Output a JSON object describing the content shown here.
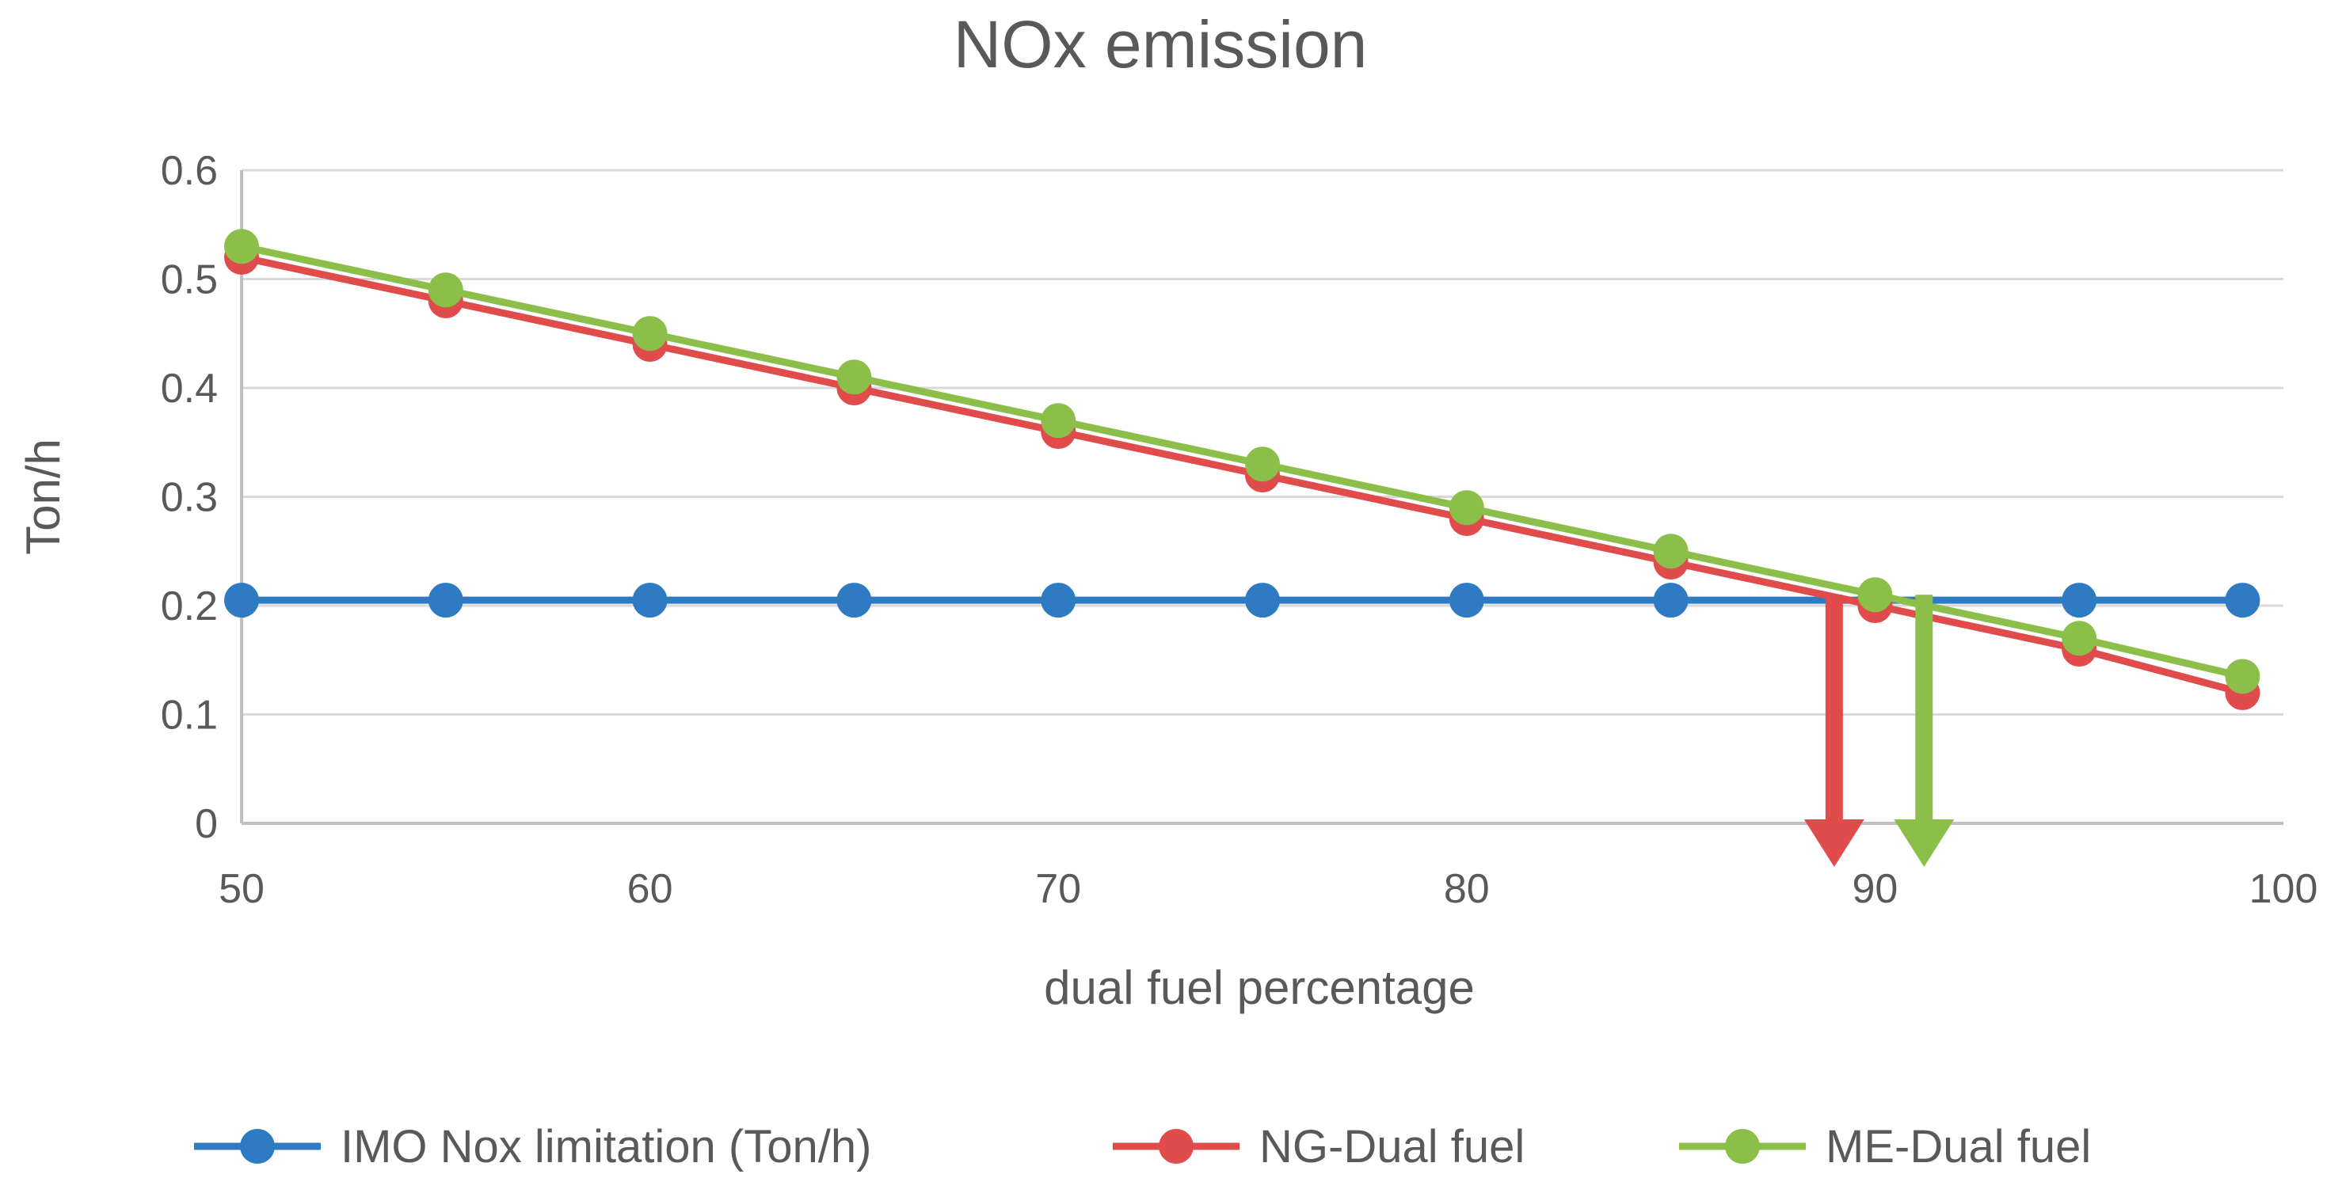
{
  "chart_data": {
    "type": "line",
    "title": "NOx emission",
    "xlabel": "dual fuel percentage",
    "ylabel": "Ton/h",
    "xlim": [
      50,
      100
    ],
    "ylim": [
      0,
      0.6
    ],
    "x_ticks": [
      "50",
      "60",
      "70",
      "80",
      "90",
      "100"
    ],
    "y_ticks": [
      "0",
      "0.1",
      "0.2",
      "0.3",
      "0.4",
      "0.5",
      "0.6"
    ],
    "grid": true,
    "legend_position": "bottom",
    "series": [
      {
        "name": "IMO Nox limitation (Ton/h)",
        "color": "#2e7bc4",
        "x": [
          50,
          55,
          60,
          65,
          70,
          75,
          80,
          85,
          90,
          95,
          99
        ],
        "y": [
          0.205,
          0.205,
          0.205,
          0.205,
          0.205,
          0.205,
          0.205,
          0.205,
          0.205,
          0.205,
          0.205
        ]
      },
      {
        "name": "NG-Dual fuel",
        "color": "#e04b4b",
        "x": [
          50,
          55,
          60,
          65,
          70,
          75,
          80,
          85,
          90,
          95,
          99
        ],
        "y": [
          0.52,
          0.48,
          0.44,
          0.4,
          0.36,
          0.32,
          0.28,
          0.24,
          0.2,
          0.16,
          0.12
        ]
      },
      {
        "name": "ME-Dual fuel",
        "color": "#8bbf4a",
        "x": [
          50,
          55,
          60,
          65,
          70,
          75,
          80,
          85,
          90,
          95,
          99
        ],
        "y": [
          0.53,
          0.49,
          0.45,
          0.41,
          0.37,
          0.33,
          0.29,
          0.25,
          0.21,
          0.17,
          0.135
        ]
      }
    ],
    "annotations": [
      {
        "type": "arrow-down",
        "color": "#e04b4b",
        "x": 89,
        "y_from": 0.21,
        "y_to": -0.04
      },
      {
        "type": "arrow-down",
        "color": "#8bbf4a",
        "x": 91.2,
        "y_from": 0.21,
        "y_to": -0.04
      }
    ]
  }
}
